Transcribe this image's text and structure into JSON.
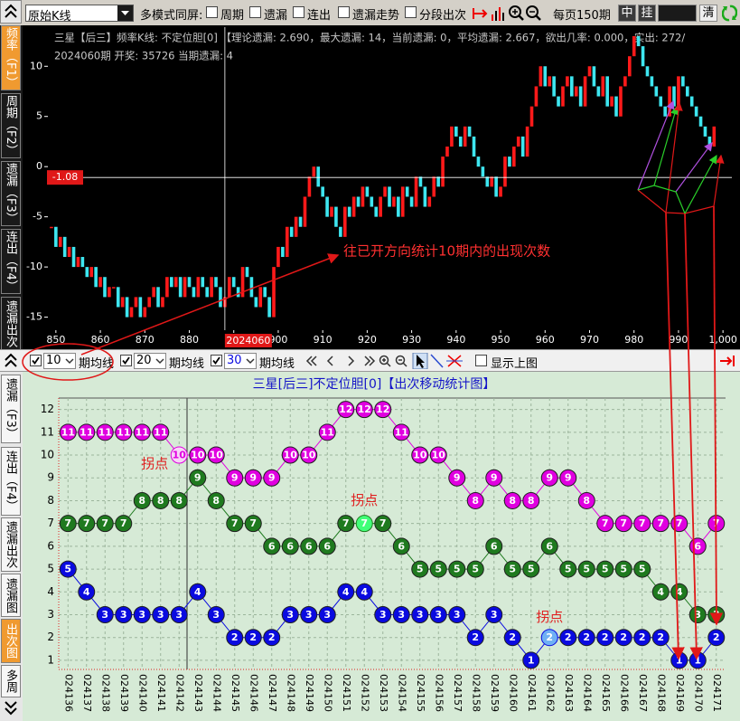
{
  "toolbar": {
    "mode": "原始K线",
    "multi_label": "多模式同屏:",
    "options": [
      "周期",
      "遗漏",
      "连出",
      "遗漏走势",
      "分段出次"
    ],
    "per_page": "每页150期",
    "buttons": [
      "中",
      "挂"
    ],
    "clear": "清"
  },
  "top_tabs": [
    "频率（F1）",
    "周期（F2）",
    "遗漏（F3）",
    "连出（F4）",
    "遗漏出次"
  ],
  "bottom_tabs": [
    "遗漏（F3）",
    "连出（F4）",
    "遗漏出次",
    "遗漏图",
    "出次图",
    "多周"
  ],
  "controls": {
    "periods": [
      10,
      20,
      30
    ],
    "ma_label": "期均线",
    "show_top": "显示上图"
  },
  "chart_data": [
    {
      "type": "kline",
      "info": [
        "三星【后三】频率K线: 不定位胆[0]  【理论遗漏: 2.690，最大遗漏: 14，当前遗漏: 0，平均遗漏: 2.667，欲出几率: 0.000，实出: 272/",
        "2024060期 开奖: 35726 当期遗漏: 4"
      ],
      "annotation": "往已开方向统计10期内的出现次数",
      "x": [
        849,
        850,
        851,
        852,
        853,
        854,
        855,
        856,
        857,
        858,
        859,
        860,
        861,
        862,
        863,
        864,
        865,
        866,
        867,
        868,
        869,
        870,
        871,
        872,
        873,
        874,
        875,
        876,
        877,
        878,
        879,
        880,
        881,
        882,
        883,
        884,
        885,
        886,
        887,
        888,
        889,
        890,
        891,
        892,
        893,
        894,
        895,
        896,
        897,
        898,
        899,
        900,
        901,
        902,
        903,
        904,
        905,
        906,
        907,
        908,
        909,
        910,
        911,
        912,
        913,
        914,
        915,
        916,
        917,
        918,
        919,
        920,
        921,
        922,
        923,
        924,
        925,
        926,
        927,
        928,
        929,
        930,
        931,
        932,
        933,
        934,
        935,
        936,
        937,
        938,
        939,
        940,
        941,
        942,
        943,
        944,
        945,
        946,
        947,
        948,
        949,
        950,
        951,
        952,
        953,
        954,
        955,
        956,
        957,
        958,
        959,
        960,
        961,
        962,
        963,
        964,
        965,
        966,
        967,
        968,
        969,
        970,
        971,
        972,
        973,
        974,
        975,
        976,
        977,
        978,
        979,
        980,
        981,
        982,
        983,
        984,
        985,
        986,
        987,
        988,
        989,
        990,
        991,
        992,
        993,
        994,
        995,
        996,
        997,
        998
      ],
      "values": [
        -6,
        -8,
        -7,
        -9,
        -8,
        -10,
        -9,
        -10,
        -11,
        -10,
        -12,
        -11,
        -13,
        -12,
        -12,
        -14,
        -13,
        -15,
        -14,
        -13,
        -15,
        -14,
        -13,
        -12,
        -14,
        -13,
        -11,
        -12,
        -11,
        -13,
        -11,
        -12,
        -13,
        -11,
        -12,
        -13,
        -11,
        -12,
        -14,
        -13,
        -11,
        -12,
        -13,
        -10,
        -11,
        -13,
        -14,
        -12,
        -13,
        -15,
        -10,
        -8,
        -9,
        -6,
        -7,
        -5,
        -6,
        -3,
        -1,
        0,
        -2,
        -3,
        -5,
        -4,
        -6,
        -7,
        -4,
        -5,
        -3,
        -4,
        -2,
        -3,
        -4,
        -5,
        -3,
        -2,
        -4,
        -3,
        -5,
        -2,
        -3,
        -4,
        -1,
        -2,
        -4,
        -3,
        -1,
        -2,
        1,
        2,
        4,
        3,
        2,
        4,
        3,
        1,
        0,
        -1,
        -2,
        -1,
        -3,
        -2,
        1,
        0,
        2,
        3,
        1,
        4,
        6,
        8,
        10,
        8,
        9,
        7,
        6,
        8,
        9,
        7,
        8,
        6,
        9,
        10,
        8,
        7,
        9,
        6,
        7,
        5,
        8,
        9,
        11,
        13,
        12,
        10,
        9,
        8,
        7,
        6,
        5,
        8,
        6,
        9,
        8,
        7,
        6,
        5,
        4,
        3,
        2,
        4
      ],
      "up_color": "#ff1a1a",
      "down_color": "#3ee6f0",
      "xlim": [
        848,
        1002
      ],
      "xticks": [
        850,
        860,
        870,
        880,
        890,
        900,
        910,
        920,
        930,
        940,
        950,
        960,
        970,
        980,
        990,
        {
          "value": 1000,
          "label": "1,000"
        }
      ],
      "ylim": [
        -16.3,
        13.9
      ],
      "yticks": [
        -15,
        -10,
        -5,
        0,
        5,
        10
      ],
      "crosshair": {
        "x": 888,
        "x_label": "2024060",
        "y": -1.08
      }
    },
    {
      "type": "line",
      "title": "三星[后三]不定位胆[0]【出次移动统计图】",
      "categories": [
        "024136",
        "024137",
        "024138",
        "024139",
        "024140",
        "024141",
        "024142",
        "024143",
        "024144",
        "024145",
        "024146",
        "024147",
        "024148",
        "024149",
        "024150",
        "024151",
        "024152",
        "024153",
        "024154",
        "024155",
        "024156",
        "024157",
        "024158",
        "024159",
        "024160",
        "024161",
        "024162",
        "024163",
        "024164",
        "024165",
        "024166",
        "024167",
        "024168",
        "024169",
        "024170",
        "024171"
      ],
      "series": [
        {
          "color": "#e000e0",
          "highlight": 6,
          "highlight_color": "#f6d6f6",
          "highlight_text_color": "#e000e0",
          "annotation": "拐点",
          "values": [
            11,
            11,
            11,
            11,
            11,
            11,
            10,
            10,
            10,
            9,
            9,
            9,
            10,
            10,
            11,
            12,
            12,
            12,
            11,
            10,
            10,
            9,
            8,
            9,
            8,
            8,
            9,
            9,
            8,
            7,
            7,
            7,
            7,
            7,
            6,
            7
          ]
        },
        {
          "color": "#1f7a1f",
          "highlight": 16,
          "highlight_color": "#40ff78",
          "highlight_text_color": "#ffffff",
          "annotation": "拐点",
          "values": [
            7,
            7,
            7,
            7,
            8,
            8,
            8,
            9,
            8,
            7,
            7,
            6,
            6,
            6,
            6,
            7,
            7,
            7,
            6,
            5,
            5,
            5,
            5,
            6,
            5,
            5,
            6,
            5,
            5,
            5,
            5,
            5,
            4,
            4,
            3,
            3
          ]
        },
        {
          "color": "#0a0ae0",
          "highlight": 26,
          "highlight_color": "#6fb0f4",
          "highlight_text_color": "#ffffff",
          "annotation": "拐点",
          "values": [
            5,
            4,
            3,
            3,
            3,
            3,
            3,
            4,
            3,
            2,
            2,
            2,
            3,
            3,
            3,
            4,
            4,
            3,
            3,
            3,
            3,
            3,
            2,
            3,
            2,
            1,
            2,
            2,
            2,
            2,
            2,
            2,
            2,
            1,
            1,
            2
          ]
        }
      ],
      "ylim": [
        0.6,
        12.5
      ],
      "yticks": [
        1,
        2,
        3,
        4,
        5,
        6,
        7,
        8,
        9,
        10,
        11,
        12
      ],
      "grid": true
    }
  ]
}
